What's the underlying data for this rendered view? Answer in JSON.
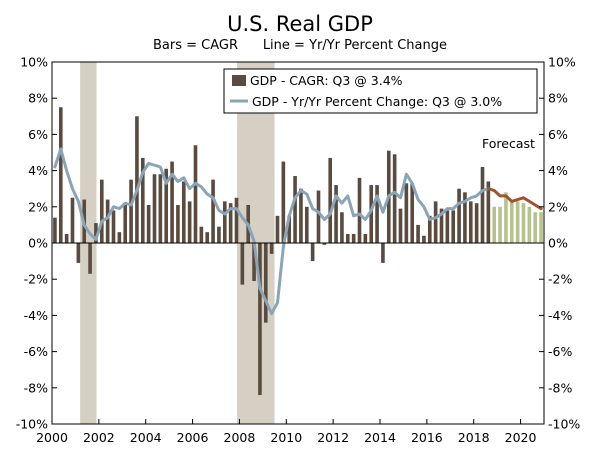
{
  "chart_data": {
    "type": "bar",
    "title": "U.S. Real GDP",
    "subtitle": "Bars = CAGR      Line = Yr/Yr Percent Change",
    "xlim": [
      2000,
      2021
    ],
    "ylim": [
      -10,
      10
    ],
    "y_ticks": [
      "10%",
      "8%",
      "6%",
      "4%",
      "2%",
      "0%",
      "-2%",
      "-4%",
      "-6%",
      "-8%",
      "-10%"
    ],
    "x_ticks": [
      "2000",
      "2002",
      "2004",
      "2006",
      "2008",
      "2010",
      "2012",
      "2014",
      "2016",
      "2018",
      "2020"
    ],
    "legend_placement": "top-center",
    "annotation": "Forecast",
    "colors": {
      "bars": "#5a4b3e",
      "forecast_bars": "#b6c38e",
      "line": "#8aa4b8",
      "forecast_line": "#a0522d",
      "recession": "#d6d0c4"
    },
    "recessions": [
      [
        2001.2,
        2001.9
      ],
      [
        2007.9,
        2009.5
      ]
    ],
    "series": [
      {
        "name": "GDP - CAGR: Q3 @ 3.4%",
        "kind": "bar",
        "x": [
          2000.0,
          2000.25,
          2000.5,
          2000.75,
          2001.0,
          2001.25,
          2001.5,
          2001.75,
          2002.0,
          2002.25,
          2002.5,
          2002.75,
          2003.0,
          2003.25,
          2003.5,
          2003.75,
          2004.0,
          2004.25,
          2004.5,
          2004.75,
          2005.0,
          2005.25,
          2005.5,
          2005.75,
          2006.0,
          2006.25,
          2006.5,
          2006.75,
          2007.0,
          2007.25,
          2007.5,
          2007.75,
          2008.0,
          2008.25,
          2008.5,
          2008.75,
          2009.0,
          2009.25,
          2009.5,
          2009.75,
          2010.0,
          2010.25,
          2010.5,
          2010.75,
          2011.0,
          2011.25,
          2011.5,
          2011.75,
          2012.0,
          2012.25,
          2012.5,
          2012.75,
          2013.0,
          2013.25,
          2013.5,
          2013.75,
          2014.0,
          2014.25,
          2014.5,
          2014.75,
          2015.0,
          2015.25,
          2015.5,
          2015.75,
          2016.0,
          2016.25,
          2016.5,
          2016.75,
          2017.0,
          2017.25,
          2017.5,
          2017.75,
          2018.0,
          2018.25,
          2018.5
        ],
        "values": [
          1.4,
          7.5,
          0.5,
          2.5,
          -1.1,
          2.4,
          -1.7,
          1.1,
          3.5,
          2.4,
          1.8,
          0.6,
          2.2,
          3.5,
          7.0,
          4.7,
          2.1,
          3.8,
          3.8,
          4.1,
          4.5,
          2.1,
          3.4,
          2.3,
          5.4,
          0.9,
          0.6,
          3.5,
          0.9,
          2.3,
          2.2,
          2.5,
          -2.3,
          2.1,
          -2.1,
          -8.4,
          -4.4,
          -0.6,
          1.5,
          4.5,
          1.5,
          3.7,
          3.0,
          2.0,
          -1.0,
          2.9,
          -0.1,
          4.7,
          3.2,
          1.7,
          0.5,
          0.5,
          3.6,
          0.5,
          3.2,
          3.2,
          -1.1,
          5.1,
          4.9,
          1.9,
          3.3,
          3.3,
          1.0,
          0.4,
          1.5,
          2.3,
          1.9,
          1.8,
          1.8,
          3.0,
          2.8,
          2.3,
          2.2,
          4.2,
          3.4
        ]
      },
      {
        "name": "",
        "kind": "forecast_bar",
        "x": [
          2018.75,
          2019.0,
          2019.25,
          2019.5,
          2019.75,
          2020.0,
          2020.25,
          2020.5,
          2020.75
        ],
        "values": [
          2.0,
          2.0,
          2.8,
          2.4,
          2.3,
          2.2,
          2.0,
          1.7,
          1.7
        ]
      },
      {
        "name": "GDP - Yr/Yr Percent Change: Q3 @ 3.0%",
        "kind": "line",
        "x": [
          2000.0,
          2000.25,
          2000.5,
          2000.75,
          2001.0,
          2001.25,
          2001.5,
          2001.75,
          2002.0,
          2002.25,
          2002.5,
          2002.75,
          2003.0,
          2003.25,
          2003.5,
          2003.75,
          2004.0,
          2004.25,
          2004.5,
          2004.75,
          2005.0,
          2005.25,
          2005.5,
          2005.75,
          2006.0,
          2006.25,
          2006.5,
          2006.75,
          2007.0,
          2007.25,
          2007.5,
          2007.75,
          2008.0,
          2008.25,
          2008.5,
          2008.75,
          2009.0,
          2009.25,
          2009.5,
          2009.75,
          2010.0,
          2010.25,
          2010.5,
          2010.75,
          2011.0,
          2011.25,
          2011.5,
          2011.75,
          2012.0,
          2012.25,
          2012.5,
          2012.75,
          2013.0,
          2013.25,
          2013.5,
          2013.75,
          2014.0,
          2014.25,
          2014.5,
          2014.75,
          2015.0,
          2015.25,
          2015.5,
          2015.75,
          2016.0,
          2016.25,
          2016.5,
          2016.75,
          2017.0,
          2017.25,
          2017.5,
          2017.75,
          2018.0,
          2018.25,
          2018.5
        ],
        "values": [
          4.2,
          5.2,
          4.0,
          3.0,
          2.3,
          1.0,
          0.5,
          0.2,
          1.2,
          1.4,
          2.0,
          1.9,
          2.2,
          2.1,
          2.9,
          3.9,
          4.4,
          4.3,
          4.2,
          3.3,
          3.8,
          3.4,
          3.6,
          3.0,
          3.3,
          3.1,
          2.7,
          2.5,
          1.8,
          1.6,
          1.9,
          1.9,
          1.4,
          1.0,
          0.1,
          -2.5,
          -3.2,
          -3.9,
          -3.3,
          -0.2,
          1.5,
          2.5,
          2.9,
          2.7,
          1.9,
          1.7,
          1.3,
          1.6,
          2.6,
          2.2,
          2.6,
          1.5,
          1.6,
          1.3,
          1.8,
          2.6,
          1.7,
          2.6,
          2.8,
          2.5,
          3.8,
          3.3,
          2.4,
          2.0,
          1.3,
          1.4,
          1.6,
          1.9,
          1.9,
          2.2,
          2.3,
          2.5,
          2.6,
          2.9,
          3.0
        ]
      },
      {
        "name": "",
        "kind": "forecast_line",
        "x": [
          2018.5,
          2018.75,
          2019.0,
          2019.25,
          2019.5,
          2019.75,
          2020.0,
          2020.25,
          2020.5,
          2020.75
        ],
        "values": [
          3.0,
          2.9,
          2.6,
          2.6,
          2.3,
          2.4,
          2.5,
          2.3,
          2.1,
          1.9
        ]
      }
    ]
  }
}
